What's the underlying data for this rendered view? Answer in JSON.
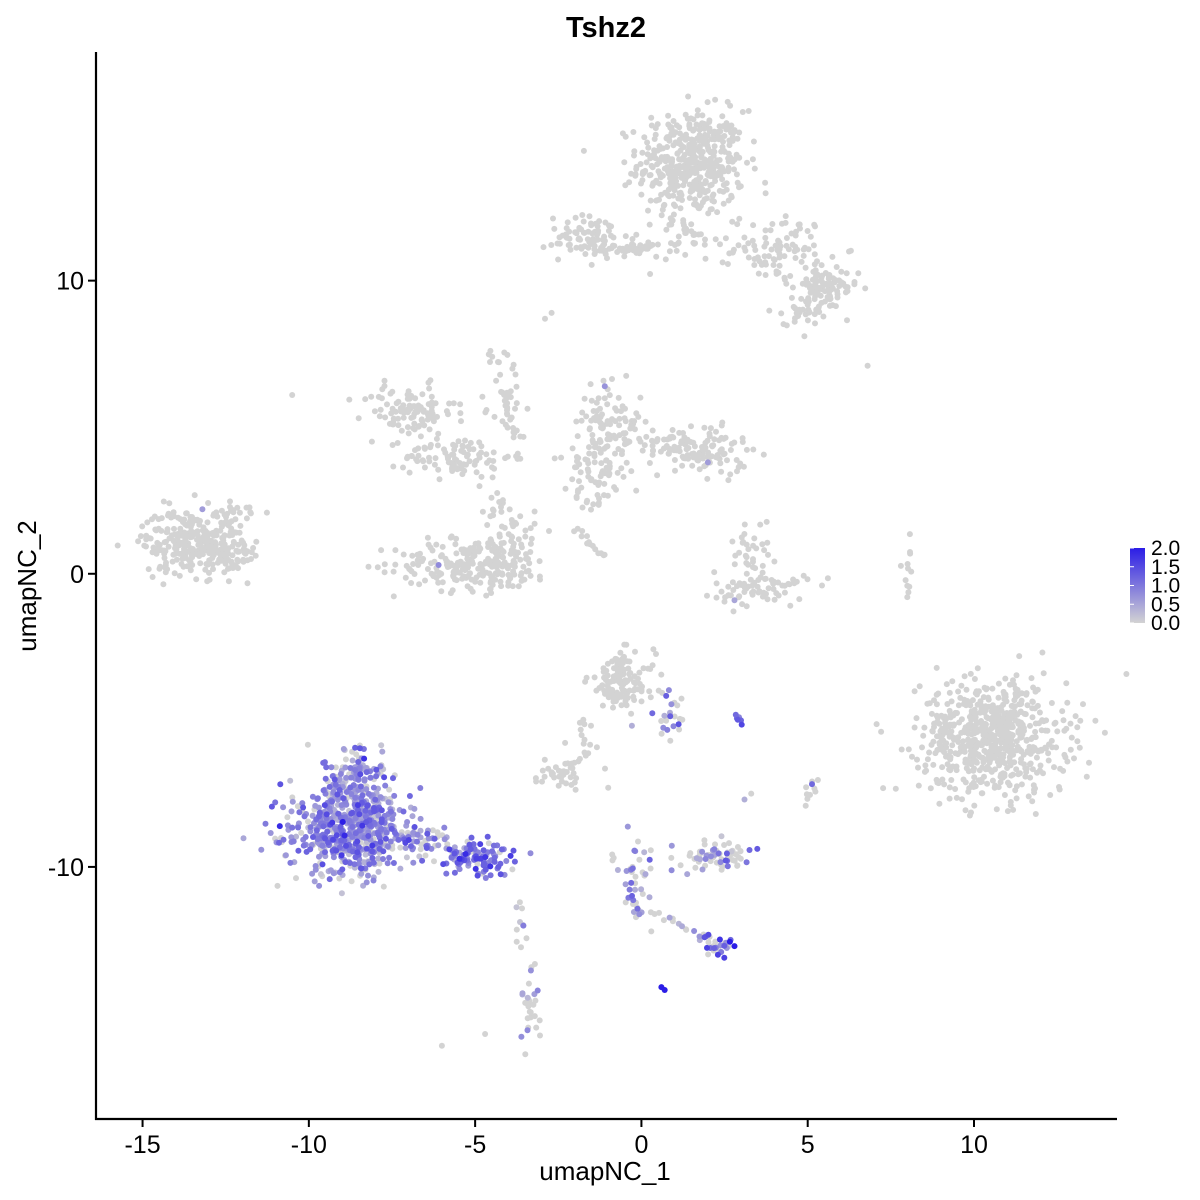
{
  "chart_data": {
    "type": "scatter",
    "title": "Tshz2",
    "xlabel": "umapNC_1",
    "ylabel": "umapNC_2",
    "xlim": [
      -16.4,
      14.3
    ],
    "ylim": [
      -18.6,
      17.8
    ],
    "x_ticks": [
      -15,
      -10,
      -5,
      0,
      5,
      10
    ],
    "x_tick_labels": [
      "-15",
      "-10",
      "-5",
      "0",
      "5",
      "10"
    ],
    "y_ticks": [
      -10,
      0,
      10
    ],
    "y_tick_labels": [
      "-10",
      "0",
      "10"
    ],
    "grid": false,
    "legend": {
      "placement": "right",
      "type": "colorbar",
      "range": [
        0,
        2.0
      ],
      "ticks": [
        0,
        0.5,
        1.0,
        1.5,
        2.0
      ],
      "tick_labels": [
        "0.0",
        "0.5",
        "1.0",
        "1.5",
        "2.0"
      ],
      "low_color": "#d3d3d3",
      "high_color": "#2b1de6"
    },
    "clusters": [
      {
        "cx": 1.5,
        "cy": 14.0,
        "sx": 0.8,
        "sy": 0.9,
        "n": 460,
        "expr": 0,
        "p": 0
      },
      {
        "cx": -1.5,
        "cy": 11.5,
        "sx": 0.7,
        "sy": 0.35,
        "n": 70,
        "expr": 0,
        "p": 0
      },
      {
        "cx": 0.2,
        "cy": 11.1,
        "sx": 1.3,
        "sy": 0.2,
        "n": 40,
        "expr": 0,
        "p": 0
      },
      {
        "cx": 4.2,
        "cy": 11.1,
        "sx": 0.7,
        "sy": 0.55,
        "n": 90,
        "expr": 0,
        "p": 0
      },
      {
        "cx": 5.5,
        "cy": 9.7,
        "sx": 0.5,
        "sy": 0.35,
        "n": 80,
        "expr": 0,
        "p": 0
      },
      {
        "cx": 4.9,
        "cy": 9.0,
        "sx": 0.3,
        "sy": 0.25,
        "n": 30,
        "expr": 0,
        "p": 0
      },
      {
        "cx": -7.0,
        "cy": 5.5,
        "sx": 0.7,
        "sy": 0.45,
        "n": 100,
        "expr": 0,
        "p": 0
      },
      {
        "cx": -5.5,
        "cy": 4.0,
        "sx": 0.8,
        "sy": 0.35,
        "n": 90,
        "expr": 0,
        "p": 0
      },
      {
        "cx": -4.0,
        "cy": 5.8,
        "sx": 0.25,
        "sy": 1.0,
        "n": 30,
        "expr": 0,
        "p": 0
      },
      {
        "cx": -5.0,
        "cy": 0.3,
        "sx": 1.2,
        "sy": 0.45,
        "n": 220,
        "expr": 0,
        "p": 0
      },
      {
        "cx": -3.9,
        "cy": 1.2,
        "sx": 0.35,
        "sy": 0.6,
        "n": 40,
        "expr": 0,
        "p": 0
      },
      {
        "cx": -4.4,
        "cy": 2.5,
        "sx": 0.2,
        "sy": 0.5,
        "n": 15,
        "expr": 0,
        "p": 0
      },
      {
        "cx": -1.0,
        "cy": 5.2,
        "sx": 0.5,
        "sy": 0.6,
        "n": 80,
        "expr": 0,
        "p": 0
      },
      {
        "cx": -1.3,
        "cy": 3.6,
        "sx": 0.5,
        "sy": 0.6,
        "n": 60,
        "expr": 0,
        "p": 0
      },
      {
        "cx": 0.8,
        "cy": 4.4,
        "sx": 0.9,
        "sy": 0.35,
        "n": 80,
        "expr": 0,
        "p": 0
      },
      {
        "cx": 2.1,
        "cy": 4.1,
        "sx": 0.55,
        "sy": 0.4,
        "n": 70,
        "expr": 0,
        "p": 0
      },
      {
        "cx": -13.5,
        "cy": 1.1,
        "sx": 0.75,
        "sy": 0.55,
        "n": 280,
        "expr": 0,
        "p": 0
      },
      {
        "cx": -12.3,
        "cy": 0.6,
        "sx": 0.35,
        "sy": 0.35,
        "n": 40,
        "expr": 0,
        "p": 0
      },
      {
        "cx": -12.0,
        "cy": 2.0,
        "sx": 0.3,
        "sy": 0.3,
        "n": 20,
        "expr": 0,
        "p": 0
      },
      {
        "cx": 3.6,
        "cy": -0.5,
        "sx": 0.7,
        "sy": 0.3,
        "n": 70,
        "expr": 0,
        "p": 0
      },
      {
        "cx": 3.3,
        "cy": 0.8,
        "sx": 0.3,
        "sy": 0.5,
        "n": 30,
        "expr": 0,
        "p": 0
      },
      {
        "cx": 10.6,
        "cy": -5.6,
        "sx": 1.1,
        "sy": 1.0,
        "n": 620,
        "expr": 0,
        "p": 0
      },
      {
        "cx": 9.1,
        "cy": -5.4,
        "sx": 0.3,
        "sy": 0.6,
        "n": 40,
        "expr": 0,
        "p": 0
      },
      {
        "cx": -0.6,
        "cy": -3.7,
        "sx": 0.5,
        "sy": 0.5,
        "n": 120,
        "expr": 0,
        "p": 0
      },
      {
        "cx": 0.8,
        "cy": -4.8,
        "sx": 0.35,
        "sy": 0.45,
        "n": 25,
        "expr": 0.9,
        "p": 0.55
      },
      {
        "cx": -2.6,
        "cy": -6.8,
        "sx": 0.35,
        "sy": 0.2,
        "n": 30,
        "expr": 0,
        "p": 0
      },
      {
        "cx": -1.7,
        "cy": -5.6,
        "sx": 0.25,
        "sy": 0.5,
        "n": 15,
        "expr": 0,
        "p": 0
      },
      {
        "cx": -8.8,
        "cy": -8.8,
        "sx": 0.9,
        "sy": 0.75,
        "n": 620,
        "expr": 0.8,
        "p": 0.8
      },
      {
        "cx": -8.6,
        "cy": -6.9,
        "sx": 0.5,
        "sy": 0.55,
        "n": 130,
        "expr": 0.75,
        "p": 0.7
      },
      {
        "cx": -5.0,
        "cy": -9.7,
        "sx": 0.6,
        "sy": 0.3,
        "n": 110,
        "expr": 1.1,
        "p": 0.85
      },
      {
        "cx": -6.6,
        "cy": -9.0,
        "sx": 0.4,
        "sy": 0.25,
        "n": 40,
        "expr": 0.9,
        "p": 0.7
      },
      {
        "cx": 2.3,
        "cy": -9.6,
        "sx": 0.5,
        "sy": 0.25,
        "n": 70,
        "expr": 0.8,
        "p": 0.35
      },
      {
        "cx": -0.1,
        "cy": -10.3,
        "sx": 0.2,
        "sy": 0.7,
        "n": 30,
        "expr": 0.8,
        "p": 0.5
      },
      {
        "cx": 2.3,
        "cy": -12.7,
        "sx": 0.25,
        "sy": 0.2,
        "n": 25,
        "expr": 1.3,
        "p": 0.6
      },
      {
        "cx": -3.4,
        "cy": -14.7,
        "sx": 0.2,
        "sy": 0.6,
        "n": 30,
        "expr": 0.7,
        "p": 0.3
      },
      {
        "cx": 2.9,
        "cy": -5.0,
        "sx": 0.1,
        "sy": 0.1,
        "n": 6,
        "expr": 1.4,
        "p": 0.9
      },
      {
        "cx": 5.1,
        "cy": -7.3,
        "sx": 0.15,
        "sy": 0.3,
        "n": 10,
        "expr": 0.5,
        "p": 0.2
      },
      {
        "cx": 8.0,
        "cy": -0.3,
        "sx": 0.1,
        "sy": 0.5,
        "n": 12,
        "expr": 0,
        "p": 0
      }
    ],
    "trails": [
      {
        "from": [
          -1.7,
          10.9
        ],
        "to": [
          0.7,
          11.2
        ],
        "n": 25,
        "expr": 0,
        "p": 0
      },
      {
        "from": [
          0.8,
          12.2
        ],
        "to": [
          2.0,
          11.3
        ],
        "n": 20,
        "expr": 0,
        "p": 0
      },
      {
        "from": [
          -4.6,
          7.6
        ],
        "to": [
          -3.6,
          4.5
        ],
        "n": 22,
        "expr": 0,
        "p": 0
      },
      {
        "from": [
          -2.2,
          3.5
        ],
        "to": [
          -1.5,
          2.0
        ],
        "n": 10,
        "expr": 0,
        "p": 0
      },
      {
        "from": [
          -2.1,
          1.5
        ],
        "to": [
          -1.1,
          0.6
        ],
        "n": 14,
        "expr": 0,
        "p": 0
      },
      {
        "from": [
          -3.7,
          -10.8
        ],
        "to": [
          -3.6,
          -13.1
        ],
        "n": 10,
        "expr": 0.3,
        "p": 0.3
      },
      {
        "from": [
          -0.9,
          -9.5
        ],
        "to": [
          0.0,
          -11.8
        ],
        "n": 16,
        "expr": 0.6,
        "p": 0.4
      },
      {
        "from": [
          0.3,
          -11.5
        ],
        "to": [
          2.3,
          -12.6
        ],
        "n": 18,
        "expr": 0.5,
        "p": 0.3
      },
      {
        "from": [
          -1.7,
          -6.2
        ],
        "to": [
          -2.4,
          -6.9
        ],
        "n": 8,
        "expr": 0,
        "p": 0
      },
      {
        "from": [
          -4.9,
          1.0
        ],
        "to": [
          -5.6,
          -0.4
        ],
        "n": 12,
        "expr": 0,
        "p": 0
      }
    ],
    "singles": [
      [
        -10.5,
        6.1,
        0
      ],
      [
        -2.7,
        8.9,
        0
      ],
      [
        -2.9,
        8.7,
        0
      ],
      [
        6.8,
        7.1,
        0
      ],
      [
        4.9,
        8.1,
        0
      ],
      [
        -6.0,
        -16.1,
        0
      ],
      [
        -4.7,
        -15.7,
        0
      ],
      [
        0.6,
        -14.1,
        2.0
      ],
      [
        0.7,
        -14.2,
        2.0
      ],
      [
        -1.0,
        -7.3,
        0
      ],
      [
        3.3,
        -7.5,
        0
      ],
      [
        3.1,
        -7.7,
        0.4
      ],
      [
        -4.3,
        -10.0,
        1.3
      ],
      [
        -13.2,
        2.2,
        0.6
      ],
      [
        -1.1,
        6.4,
        0.7
      ],
      [
        2.0,
        3.8,
        0.6
      ],
      [
        -6.1,
        0.3,
        0.8
      ],
      [
        2.8,
        -0.9,
        0.5
      ],
      [
        2.8,
        -12.7,
        2.0
      ],
      [
        2.3,
        -13.0,
        1.6
      ]
    ]
  }
}
